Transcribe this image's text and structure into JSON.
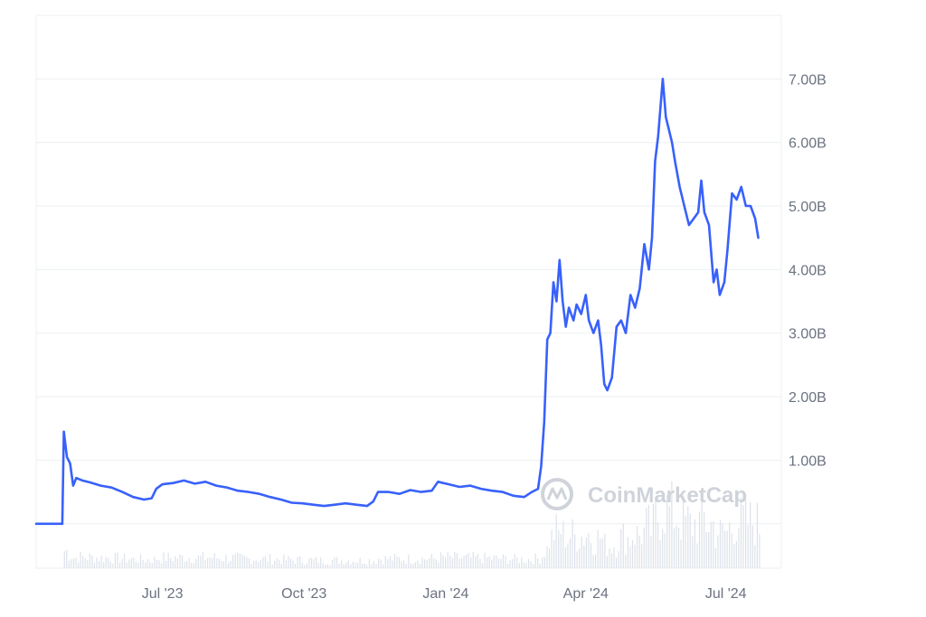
{
  "watermark": {
    "text": "CoinMarketCap"
  },
  "chart_data": {
    "type": "line",
    "y_unit_suffix": "B",
    "ylim": [
      -0.7,
      8.0
    ],
    "y_ticks": [
      {
        "value": 1.0,
        "label": "1.00B"
      },
      {
        "value": 2.0,
        "label": "2.00B"
      },
      {
        "value": 3.0,
        "label": "3.00B"
      },
      {
        "value": 4.0,
        "label": "4.00B"
      },
      {
        "value": 5.0,
        "label": "5.00B"
      },
      {
        "value": 6.0,
        "label": "6.00B"
      },
      {
        "value": 7.0,
        "label": "7.00B"
      }
    ],
    "xlim": [
      "2023-04-10",
      "2024-08-06"
    ],
    "x_ticks": [
      {
        "date": "2023-07-01",
        "label": "Jul '23"
      },
      {
        "date": "2023-10-01",
        "label": "Oct '23"
      },
      {
        "date": "2024-01-01",
        "label": "Jan '24"
      },
      {
        "date": "2024-04-01",
        "label": "Apr '24"
      },
      {
        "date": "2024-07-01",
        "label": "Jul '24"
      }
    ],
    "grid": true,
    "line_color": "#3861fb",
    "volume_color": "#dde2ea",
    "series": [
      {
        "points": [
          [
            "2023-04-10",
            0.0
          ],
          [
            "2023-04-27",
            0.0
          ],
          [
            "2023-04-28",
            1.45
          ],
          [
            "2023-04-30",
            1.05
          ],
          [
            "2023-05-02",
            0.95
          ],
          [
            "2023-05-04",
            0.6
          ],
          [
            "2023-05-06",
            0.72
          ],
          [
            "2023-05-10",
            0.68
          ],
          [
            "2023-05-15",
            0.65
          ],
          [
            "2023-05-22",
            0.6
          ],
          [
            "2023-05-29",
            0.57
          ],
          [
            "2023-06-05",
            0.5
          ],
          [
            "2023-06-12",
            0.42
          ],
          [
            "2023-06-19",
            0.38
          ],
          [
            "2023-06-24",
            0.4
          ],
          [
            "2023-06-27",
            0.55
          ],
          [
            "2023-07-01",
            0.62
          ],
          [
            "2023-07-08",
            0.64
          ],
          [
            "2023-07-15",
            0.68
          ],
          [
            "2023-07-22",
            0.63
          ],
          [
            "2023-07-29",
            0.66
          ],
          [
            "2023-08-05",
            0.6
          ],
          [
            "2023-08-12",
            0.57
          ],
          [
            "2023-08-19",
            0.52
          ],
          [
            "2023-08-26",
            0.5
          ],
          [
            "2023-09-02",
            0.47
          ],
          [
            "2023-09-09",
            0.42
          ],
          [
            "2023-09-16",
            0.38
          ],
          [
            "2023-09-23",
            0.33
          ],
          [
            "2023-09-30",
            0.32
          ],
          [
            "2023-10-07",
            0.3
          ],
          [
            "2023-10-14",
            0.28
          ],
          [
            "2023-10-21",
            0.3
          ],
          [
            "2023-10-28",
            0.32
          ],
          [
            "2023-11-04",
            0.3
          ],
          [
            "2023-11-11",
            0.28
          ],
          [
            "2023-11-15",
            0.35
          ],
          [
            "2023-11-18",
            0.5
          ],
          [
            "2023-11-25",
            0.5
          ],
          [
            "2023-12-02",
            0.47
          ],
          [
            "2023-12-09",
            0.53
          ],
          [
            "2023-12-16",
            0.5
          ],
          [
            "2023-12-23",
            0.52
          ],
          [
            "2023-12-27",
            0.66
          ],
          [
            "2024-01-03",
            0.62
          ],
          [
            "2024-01-10",
            0.58
          ],
          [
            "2024-01-17",
            0.6
          ],
          [
            "2024-01-24",
            0.55
          ],
          [
            "2024-01-31",
            0.52
          ],
          [
            "2024-02-07",
            0.5
          ],
          [
            "2024-02-14",
            0.44
          ],
          [
            "2024-02-21",
            0.42
          ],
          [
            "2024-02-26",
            0.5
          ],
          [
            "2024-03-01",
            0.55
          ],
          [
            "2024-03-03",
            0.9
          ],
          [
            "2024-03-05",
            1.6
          ],
          [
            "2024-03-07",
            2.9
          ],
          [
            "2024-03-09",
            3.0
          ],
          [
            "2024-03-11",
            3.8
          ],
          [
            "2024-03-13",
            3.5
          ],
          [
            "2024-03-15",
            4.15
          ],
          [
            "2024-03-17",
            3.5
          ],
          [
            "2024-03-19",
            3.1
          ],
          [
            "2024-03-21",
            3.4
          ],
          [
            "2024-03-24",
            3.2
          ],
          [
            "2024-03-26",
            3.45
          ],
          [
            "2024-03-29",
            3.3
          ],
          [
            "2024-04-01",
            3.6
          ],
          [
            "2024-04-03",
            3.2
          ],
          [
            "2024-04-06",
            3.0
          ],
          [
            "2024-04-09",
            3.2
          ],
          [
            "2024-04-11",
            2.8
          ],
          [
            "2024-04-13",
            2.2
          ],
          [
            "2024-04-15",
            2.1
          ],
          [
            "2024-04-18",
            2.3
          ],
          [
            "2024-04-21",
            3.1
          ],
          [
            "2024-04-24",
            3.2
          ],
          [
            "2024-04-27",
            3.0
          ],
          [
            "2024-04-30",
            3.6
          ],
          [
            "2024-05-03",
            3.4
          ],
          [
            "2024-05-06",
            3.7
          ],
          [
            "2024-05-09",
            4.4
          ],
          [
            "2024-05-12",
            4.0
          ],
          [
            "2024-05-14",
            4.5
          ],
          [
            "2024-05-16",
            5.7
          ],
          [
            "2024-05-18",
            6.1
          ],
          [
            "2024-05-20",
            6.7
          ],
          [
            "2024-05-21",
            7.0
          ],
          [
            "2024-05-23",
            6.4
          ],
          [
            "2024-05-25",
            6.2
          ],
          [
            "2024-05-27",
            6.0
          ],
          [
            "2024-05-29",
            5.7
          ],
          [
            "2024-06-01",
            5.3
          ],
          [
            "2024-06-04",
            5.0
          ],
          [
            "2024-06-07",
            4.7
          ],
          [
            "2024-06-10",
            4.8
          ],
          [
            "2024-06-13",
            4.9
          ],
          [
            "2024-06-15",
            5.4
          ],
          [
            "2024-06-17",
            4.9
          ],
          [
            "2024-06-20",
            4.7
          ],
          [
            "2024-06-23",
            3.8
          ],
          [
            "2024-06-25",
            4.0
          ],
          [
            "2024-06-27",
            3.6
          ],
          [
            "2024-06-30",
            3.8
          ],
          [
            "2024-07-02",
            4.3
          ],
          [
            "2024-07-05",
            5.2
          ],
          [
            "2024-07-08",
            5.1
          ],
          [
            "2024-07-11",
            5.3
          ],
          [
            "2024-07-14",
            5.0
          ],
          [
            "2024-07-17",
            5.0
          ],
          [
            "2024-07-20",
            4.8
          ],
          [
            "2024-07-22",
            4.5
          ]
        ]
      }
    ]
  }
}
